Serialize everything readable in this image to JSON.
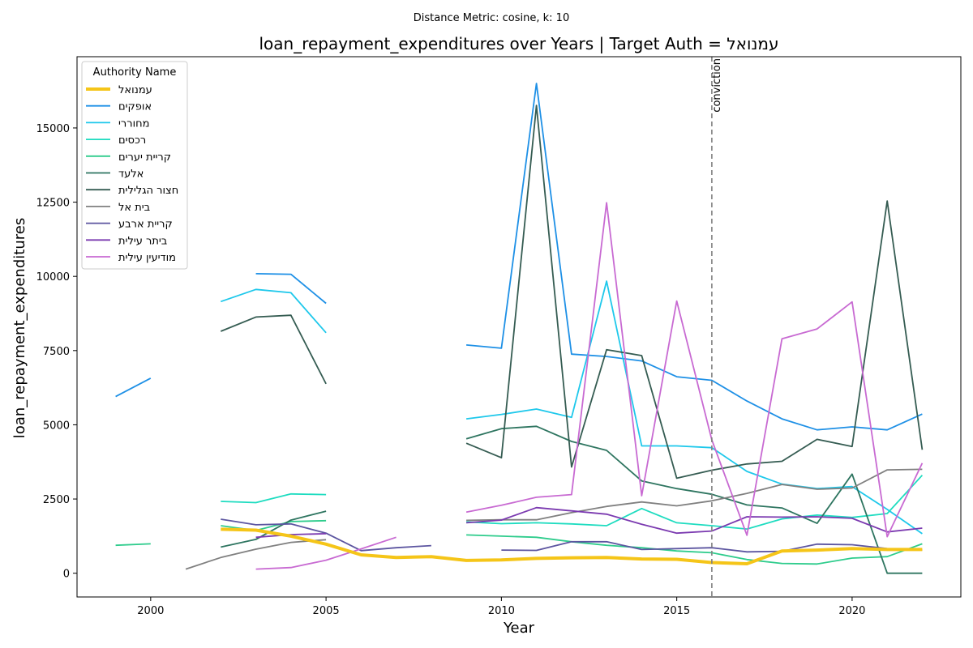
{
  "chart_data": {
    "type": "line",
    "suptitle": "Distance Metric: cosine, k: 10",
    "title": "loan_repayment_expenditures over Years | Target Auth = עמנואל",
    "xlabel": "Year",
    "ylabel": "loan_repayment_expenditures",
    "xlim": [
      1997.9,
      2023.1
    ],
    "ylim": [
      -800,
      17400
    ],
    "xticks": [
      2000,
      2005,
      2010,
      2015,
      2020
    ],
    "yticks": [
      0,
      2500,
      5000,
      7500,
      10000,
      12500,
      15000
    ],
    "grid": false,
    "legend": {
      "title": "Authority Name",
      "placement": "top-left"
    },
    "vline": {
      "x": 2016,
      "label": "conviction",
      "color": "#808080"
    },
    "series": [
      {
        "name": "עמנואל",
        "color": "#f5c518",
        "target": true,
        "points": [
          [
            2002,
            1480
          ],
          [
            2003,
            1450
          ],
          [
            2004,
            1250
          ],
          [
            2005,
            980
          ],
          [
            2006,
            620
          ],
          [
            2007,
            530
          ],
          [
            2008,
            560
          ],
          [
            2009,
            430
          ],
          [
            2010,
            450
          ],
          [
            2011,
            500
          ],
          [
            2012,
            520
          ],
          [
            2013,
            530
          ],
          [
            2014,
            480
          ],
          [
            2015,
            470
          ],
          [
            2016,
            360
          ],
          [
            2017,
            320
          ],
          [
            2018,
            750
          ],
          [
            2019,
            780
          ],
          [
            2020,
            830
          ],
          [
            2021,
            800
          ],
          [
            2022,
            800
          ]
        ]
      },
      {
        "name": "אופקים",
        "color": "#1e90e6",
        "points": [
          [
            1999,
            5950
          ],
          [
            2000,
            6570
          ],
          [
            2001,
            null
          ],
          [
            2002,
            null
          ],
          [
            2003,
            10090
          ],
          [
            2004,
            10070
          ],
          [
            2005,
            9090
          ],
          [
            2006,
            null
          ],
          [
            2007,
            null
          ],
          [
            2008,
            null
          ],
          [
            2009,
            7690
          ],
          [
            2010,
            7580
          ],
          [
            2011,
            16500
          ],
          [
            2012,
            7380
          ],
          [
            2013,
            7300
          ],
          [
            2014,
            7150
          ],
          [
            2015,
            6620
          ],
          [
            2016,
            6500
          ],
          [
            2017,
            5800
          ],
          [
            2018,
            5200
          ],
          [
            2019,
            4830
          ],
          [
            2020,
            4930
          ],
          [
            2021,
            4830
          ],
          [
            2022,
            5360
          ]
        ]
      },
      {
        "name": "מחוררי",
        "color": "#1ec8eb",
        "points": [
          [
            2002,
            9150
          ],
          [
            2003,
            9560
          ],
          [
            2004,
            9450
          ],
          [
            2005,
            8100
          ],
          [
            2006,
            null
          ],
          [
            2007,
            null
          ],
          [
            2008,
            null
          ],
          [
            2009,
            5200
          ],
          [
            2010,
            5350
          ],
          [
            2011,
            5530
          ],
          [
            2012,
            5250
          ],
          [
            2013,
            9840
          ],
          [
            2014,
            4290
          ],
          [
            2015,
            4290
          ],
          [
            2016,
            4230
          ],
          [
            2017,
            3430
          ],
          [
            2018,
            3000
          ],
          [
            2019,
            2850
          ],
          [
            2020,
            2920
          ],
          [
            2021,
            2150
          ],
          [
            2022,
            1330
          ]
        ]
      },
      {
        "name": "רכסים",
        "color": "#1edcc0",
        "points": [
          [
            2002,
            2420
          ],
          [
            2003,
            2380
          ],
          [
            2004,
            2670
          ],
          [
            2005,
            2650
          ],
          [
            2006,
            null
          ],
          [
            2007,
            null
          ],
          [
            2008,
            null
          ],
          [
            2009,
            1730
          ],
          [
            2010,
            1670
          ],
          [
            2011,
            1700
          ],
          [
            2012,
            1660
          ],
          [
            2013,
            1600
          ],
          [
            2014,
            2180
          ],
          [
            2015,
            1700
          ],
          [
            2016,
            1600
          ],
          [
            2017,
            1490
          ],
          [
            2018,
            1830
          ],
          [
            2019,
            1960
          ],
          [
            2020,
            1880
          ],
          [
            2021,
            2010
          ],
          [
            2022,
            3300
          ]
        ]
      },
      {
        "name": "קריית יערים",
        "color": "#2ecc8c",
        "points": [
          [
            1999,
            940
          ],
          [
            2000,
            990
          ],
          [
            2001,
            null
          ],
          [
            2002,
            1600
          ],
          [
            2003,
            1440
          ],
          [
            2004,
            1740
          ],
          [
            2005,
            1770
          ],
          [
            2006,
            null
          ],
          [
            2007,
            null
          ],
          [
            2008,
            null
          ],
          [
            2009,
            1290
          ],
          [
            2010,
            1250
          ],
          [
            2011,
            1210
          ],
          [
            2012,
            1060
          ],
          [
            2013,
            940
          ],
          [
            2014,
            860
          ],
          [
            2015,
            750
          ],
          [
            2016,
            690
          ],
          [
            2017,
            460
          ],
          [
            2018,
            330
          ],
          [
            2019,
            310
          ],
          [
            2020,
            510
          ],
          [
            2021,
            560
          ],
          [
            2022,
            990
          ]
        ]
      },
      {
        "name": "אלעד",
        "color": "#2e7560",
        "points": [
          [
            2002,
            880
          ],
          [
            2003,
            1140
          ],
          [
            2004,
            1790
          ],
          [
            2005,
            2090
          ],
          [
            2006,
            null
          ],
          [
            2007,
            null
          ],
          [
            2008,
            null
          ],
          [
            2009,
            4530
          ],
          [
            2010,
            4870
          ],
          [
            2011,
            4950
          ],
          [
            2012,
            4440
          ],
          [
            2013,
            4140
          ],
          [
            2014,
            3110
          ],
          [
            2015,
            2850
          ],
          [
            2016,
            2660
          ],
          [
            2017,
            2300
          ],
          [
            2018,
            2200
          ],
          [
            2019,
            1680
          ],
          [
            2020,
            3340
          ],
          [
            2021,
            0
          ],
          [
            2022,
            0
          ]
        ]
      },
      {
        "name": "חצור הגלילית",
        "color": "#355c52",
        "points": [
          [
            2002,
            8150
          ],
          [
            2003,
            8630
          ],
          [
            2004,
            8690
          ],
          [
            2005,
            6380
          ],
          [
            2006,
            null
          ],
          [
            2007,
            null
          ],
          [
            2008,
            null
          ],
          [
            2009,
            4380
          ],
          [
            2010,
            3890
          ],
          [
            2011,
            15760
          ],
          [
            2012,
            3580
          ],
          [
            2013,
            7530
          ],
          [
            2014,
            7330
          ],
          [
            2015,
            3200
          ],
          [
            2016,
            3470
          ],
          [
            2017,
            3680
          ],
          [
            2018,
            3770
          ],
          [
            2019,
            4510
          ],
          [
            2020,
            4270
          ],
          [
            2021,
            12540
          ],
          [
            2022,
            4160
          ]
        ]
      },
      {
        "name": "בית אל",
        "color": "#808080",
        "points": [
          [
            2001,
            140
          ],
          [
            2002,
            530
          ],
          [
            2003,
            810
          ],
          [
            2004,
            1040
          ],
          [
            2005,
            1130
          ],
          [
            2006,
            null
          ],
          [
            2007,
            null
          ],
          [
            2008,
            null
          ],
          [
            2009,
            1780
          ],
          [
            2010,
            1800
          ],
          [
            2011,
            1800
          ],
          [
            2012,
            2040
          ],
          [
            2013,
            2250
          ],
          [
            2014,
            2400
          ],
          [
            2015,
            2270
          ],
          [
            2016,
            2440
          ],
          [
            2017,
            2690
          ],
          [
            2018,
            2990
          ],
          [
            2019,
            2830
          ],
          [
            2020,
            2870
          ],
          [
            2021,
            3480
          ],
          [
            2022,
            3500
          ]
        ]
      },
      {
        "name": "קריית ארבע",
        "color": "#5c55a0",
        "points": [
          [
            2002,
            1820
          ],
          [
            2003,
            1630
          ],
          [
            2004,
            1660
          ],
          [
            2005,
            1350
          ],
          [
            2006,
            760
          ],
          [
            2007,
            860
          ],
          [
            2008,
            930
          ],
          [
            2009,
            null
          ],
          [
            2010,
            780
          ],
          [
            2011,
            770
          ],
          [
            2012,
            1060
          ],
          [
            2013,
            1060
          ],
          [
            2014,
            800
          ],
          [
            2015,
            830
          ],
          [
            2016,
            860
          ],
          [
            2017,
            720
          ],
          [
            2018,
            740
          ],
          [
            2019,
            980
          ],
          [
            2020,
            960
          ],
          [
            2021,
            830
          ],
          [
            2022,
            780
          ]
        ]
      },
      {
        "name": "ביתר עילית",
        "color": "#7b3ab0",
        "points": [
          [
            2003,
            1210
          ],
          [
            2004,
            1300
          ],
          [
            2005,
            1330
          ],
          [
            2006,
            null
          ],
          [
            2007,
            null
          ],
          [
            2008,
            null
          ],
          [
            2009,
            1700
          ],
          [
            2010,
            1790
          ],
          [
            2011,
            2210
          ],
          [
            2012,
            2100
          ],
          [
            2013,
            1990
          ],
          [
            2014,
            1650
          ],
          [
            2015,
            1350
          ],
          [
            2016,
            1420
          ],
          [
            2017,
            1900
          ],
          [
            2018,
            1890
          ],
          [
            2019,
            1900
          ],
          [
            2020,
            1850
          ],
          [
            2021,
            1390
          ],
          [
            2022,
            1520
          ]
        ]
      },
      {
        "name": "מודיעין עילית",
        "color": "#c86ad2",
        "points": [
          [
            2003,
            140
          ],
          [
            2004,
            190
          ],
          [
            2005,
            440
          ],
          [
            2006,
            820
          ],
          [
            2007,
            1210
          ],
          [
            2008,
            null
          ],
          [
            2009,
            2060
          ],
          [
            2010,
            2290
          ],
          [
            2011,
            2560
          ],
          [
            2012,
            2650
          ],
          [
            2013,
            12480
          ],
          [
            2014,
            2610
          ],
          [
            2015,
            9170
          ],
          [
            2016,
            4490
          ],
          [
            2017,
            1280
          ],
          [
            2018,
            7900
          ],
          [
            2019,
            8230
          ],
          [
            2020,
            9140
          ],
          [
            2021,
            1230
          ],
          [
            2022,
            3710
          ]
        ]
      }
    ]
  }
}
